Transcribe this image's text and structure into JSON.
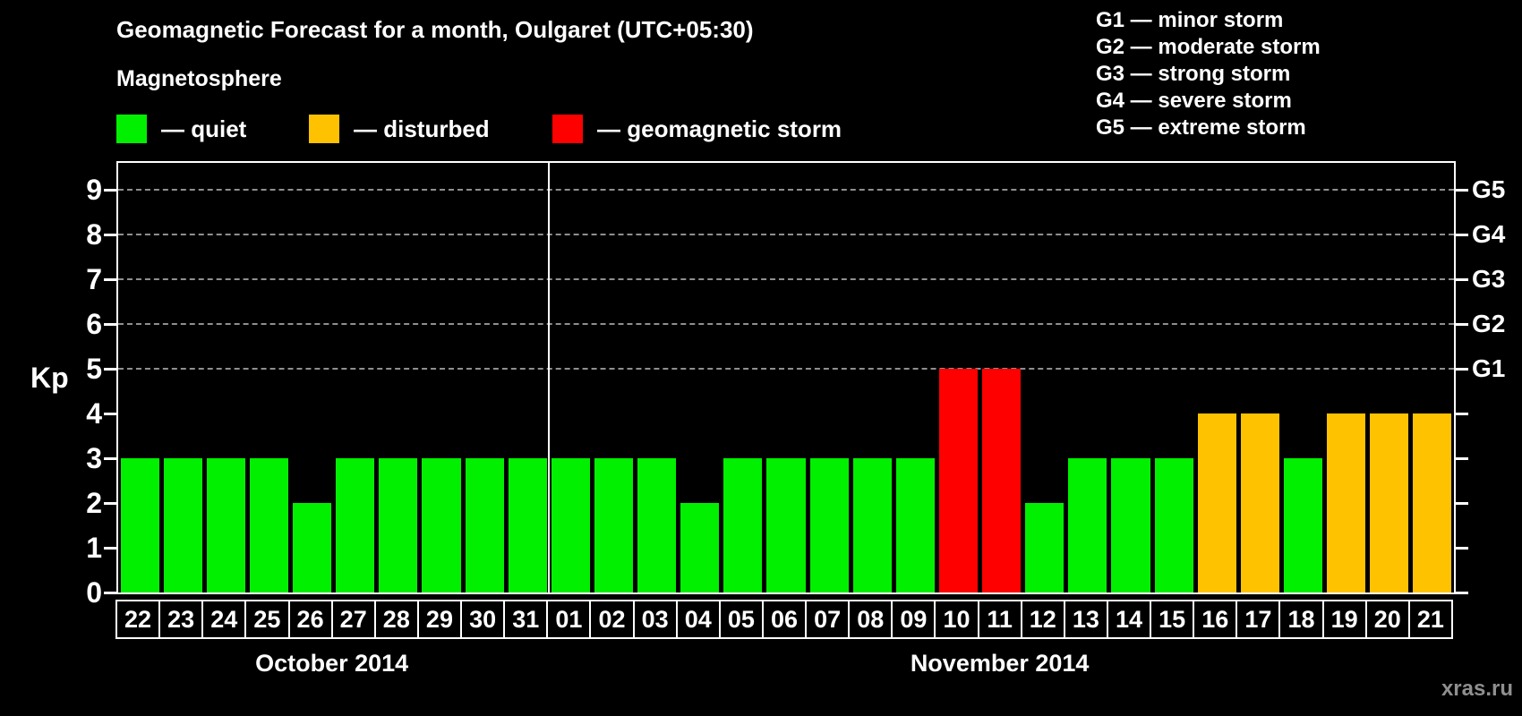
{
  "title": "Geomagnetic Forecast for a month, Oulgaret (UTC+05:30)",
  "legend": {
    "heading": "Magnetosphere",
    "items": [
      {
        "key": "quiet",
        "label": "— quiet"
      },
      {
        "key": "disturbed",
        "label": "— disturbed"
      },
      {
        "key": "storm",
        "label": "— geomagnetic storm"
      }
    ]
  },
  "g_legend": {
    "lines": [
      "G1 — minor storm",
      "G2 — moderate storm",
      "G3 — strong storm",
      "G4 — severe storm",
      "G5 — extreme storm"
    ]
  },
  "colors": {
    "quiet": "#00f000",
    "disturbed": "#ffc200",
    "storm": "#ff0000",
    "grid": "#8f8f8f",
    "axis": "#ffffff",
    "background": "#000000",
    "watermark_text": "#8f8f8f"
  },
  "watermark": "xras.ru",
  "chart_data": {
    "type": "bar",
    "title": "Geomagnetic Forecast for a month, Oulgaret (UTC+05:30)",
    "ylabel": "Kp",
    "xlabel": "",
    "ylim": [
      0,
      9.6
    ],
    "yticks": [
      0,
      1,
      2,
      3,
      4,
      5,
      6,
      7,
      8,
      9
    ],
    "gridlines_at_kp": [
      5,
      6,
      7,
      8,
      9
    ],
    "grid_style": "dashed",
    "legend_position": "top-left and top-right",
    "right_axis_labels": [
      {
        "kp": 5,
        "label": "G1"
      },
      {
        "kp": 6,
        "label": "G2"
      },
      {
        "kp": 7,
        "label": "G3"
      },
      {
        "kp": 8,
        "label": "G4"
      },
      {
        "kp": 9,
        "label": "G5"
      }
    ],
    "months": [
      {
        "label": "October 2014",
        "bars": [
          {
            "day": "22",
            "kp": 3,
            "status": "quiet"
          },
          {
            "day": "23",
            "kp": 3,
            "status": "quiet"
          },
          {
            "day": "24",
            "kp": 3,
            "status": "quiet"
          },
          {
            "day": "25",
            "kp": 3,
            "status": "quiet"
          },
          {
            "day": "26",
            "kp": 2,
            "status": "quiet"
          },
          {
            "day": "27",
            "kp": 3,
            "status": "quiet"
          },
          {
            "day": "28",
            "kp": 3,
            "status": "quiet"
          },
          {
            "day": "29",
            "kp": 3,
            "status": "quiet"
          },
          {
            "day": "30",
            "kp": 3,
            "status": "quiet"
          },
          {
            "day": "31",
            "kp": 3,
            "status": "quiet"
          }
        ]
      },
      {
        "label": "November 2014",
        "bars": [
          {
            "day": "01",
            "kp": 3,
            "status": "quiet"
          },
          {
            "day": "02",
            "kp": 3,
            "status": "quiet"
          },
          {
            "day": "03",
            "kp": 3,
            "status": "quiet"
          },
          {
            "day": "04",
            "kp": 2,
            "status": "quiet"
          },
          {
            "day": "05",
            "kp": 3,
            "status": "quiet"
          },
          {
            "day": "06",
            "kp": 3,
            "status": "quiet"
          },
          {
            "day": "07",
            "kp": 3,
            "status": "quiet"
          },
          {
            "day": "08",
            "kp": 3,
            "status": "quiet"
          },
          {
            "day": "09",
            "kp": 3,
            "status": "quiet"
          },
          {
            "day": "10",
            "kp": 5,
            "status": "storm"
          },
          {
            "day": "11",
            "kp": 5,
            "status": "storm"
          },
          {
            "day": "12",
            "kp": 2,
            "status": "quiet"
          },
          {
            "day": "13",
            "kp": 3,
            "status": "quiet"
          },
          {
            "day": "14",
            "kp": 3,
            "status": "quiet"
          },
          {
            "day": "15",
            "kp": 3,
            "status": "quiet"
          },
          {
            "day": "16",
            "kp": 4,
            "status": "disturbed"
          },
          {
            "day": "17",
            "kp": 4,
            "status": "disturbed"
          },
          {
            "day": "18",
            "kp": 3,
            "status": "quiet"
          },
          {
            "day": "19",
            "kp": 4,
            "status": "disturbed"
          },
          {
            "day": "20",
            "kp": 4,
            "status": "disturbed"
          },
          {
            "day": "21",
            "kp": 4,
            "status": "disturbed"
          }
        ]
      }
    ]
  }
}
